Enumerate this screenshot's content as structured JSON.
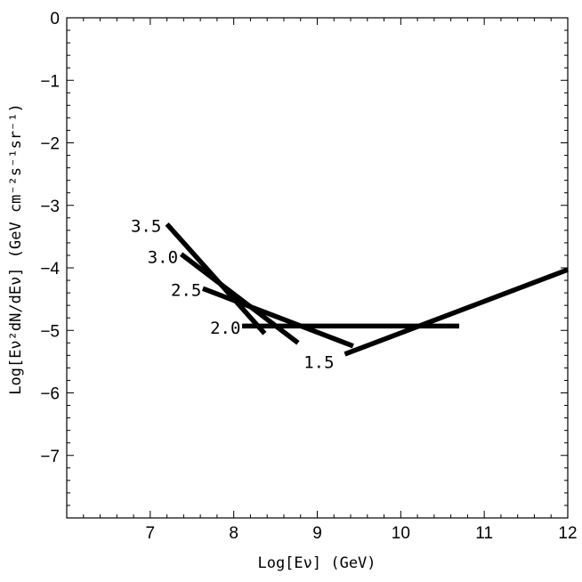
{
  "chart_data": {
    "type": "line",
    "xlabel": "Log[Eν] (GeV)",
    "ylabel": "Log[Eν²dN/dEν] (GeV cm⁻²s⁻¹sr⁻¹)",
    "xlim": [
      6,
      12
    ],
    "ylim": [
      -8,
      0
    ],
    "x_ticks": [
      {
        "value": 7,
        "label": "7"
      },
      {
        "value": 8,
        "label": "8"
      },
      {
        "value": 9,
        "label": "9"
      },
      {
        "value": 10,
        "label": "10"
      },
      {
        "value": 11,
        "label": "11"
      },
      {
        "value": 12,
        "label": "12"
      }
    ],
    "y_ticks": [
      {
        "value": 0,
        "label": "0"
      },
      {
        "value": -1,
        "label": "−1"
      },
      {
        "value": -2,
        "label": "−2"
      },
      {
        "value": -3,
        "label": "−3"
      },
      {
        "value": -4,
        "label": "−4"
      },
      {
        "value": -5,
        "label": "−5"
      },
      {
        "value": -6,
        "label": "−6"
      },
      {
        "value": -7,
        "label": "−7"
      }
    ],
    "grid": false,
    "series": [
      {
        "label": "3.5",
        "x": [
          7.2,
          8.37
        ],
        "y": [
          -3.3,
          -5.05
        ],
        "label_at": [
          6.95,
          -3.42
        ]
      },
      {
        "label": "3.0",
        "x": [
          7.37,
          8.77
        ],
        "y": [
          -3.78,
          -5.2
        ],
        "label_at": [
          7.15,
          -3.92
        ]
      },
      {
        "label": "2.5",
        "x": [
          7.63,
          9.43
        ],
        "y": [
          -4.33,
          -5.25
        ],
        "label_at": [
          7.43,
          -4.45
        ]
      },
      {
        "label": "2.0",
        "x": [
          8.1,
          10.7
        ],
        "y": [
          -4.93,
          -4.93
        ],
        "label_at": [
          7.9,
          -5.05
        ]
      },
      {
        "label": "1.5",
        "x": [
          9.33,
          12.0
        ],
        "y": [
          -5.38,
          -4.03
        ],
        "label_at": [
          9.02,
          -5.6
        ]
      }
    ]
  }
}
